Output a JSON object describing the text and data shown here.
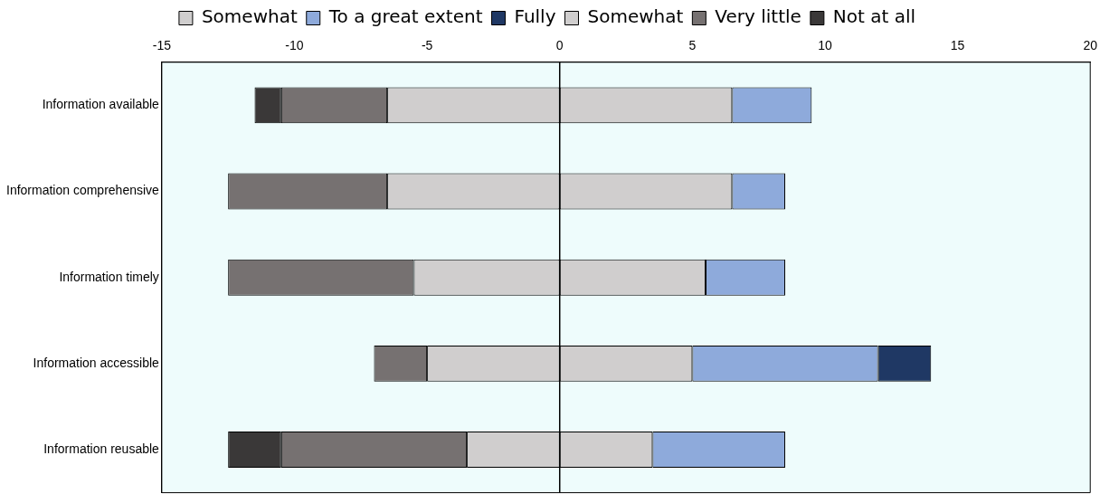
{
  "chart_data": {
    "type": "bar",
    "orientation": "horizontal",
    "stacked": true,
    "categories": [
      "Information available",
      "Information comprehensive",
      "Information timely",
      "Information accessible",
      "Information reusable"
    ],
    "series": [
      {
        "name": "Somewhat",
        "color": "#d0cece",
        "values": [
          6.5,
          6.5,
          5.5,
          5,
          3.5
        ]
      },
      {
        "name": "To a great extent",
        "color": "#8eaadb",
        "values": [
          3,
          2,
          3,
          7,
          5
        ]
      },
      {
        "name": "Fully",
        "color": "#1f3864",
        "values": [
          null,
          null,
          null,
          2,
          null
        ]
      },
      {
        "name": "Somewhat",
        "color": "#d0cece",
        "values": [
          -6.5,
          -6.5,
          -5.5,
          -5,
          -3.5
        ]
      },
      {
        "name": "Very little",
        "color": "#767171",
        "values": [
          -4,
          -6,
          -7,
          -2,
          -7
        ]
      },
      {
        "name": "Not at all",
        "color": "#3a3838",
        "values": [
          -1,
          null,
          null,
          null,
          -2
        ]
      }
    ],
    "xlim": [
      -15,
      20
    ],
    "xticks": [
      -15,
      -10,
      -5,
      0,
      5,
      10,
      15,
      20
    ],
    "ref_lines": [
      {
        "axis": "x",
        "value": 0,
        "color": "#000000"
      }
    ],
    "grid": false,
    "legend": "top"
  }
}
